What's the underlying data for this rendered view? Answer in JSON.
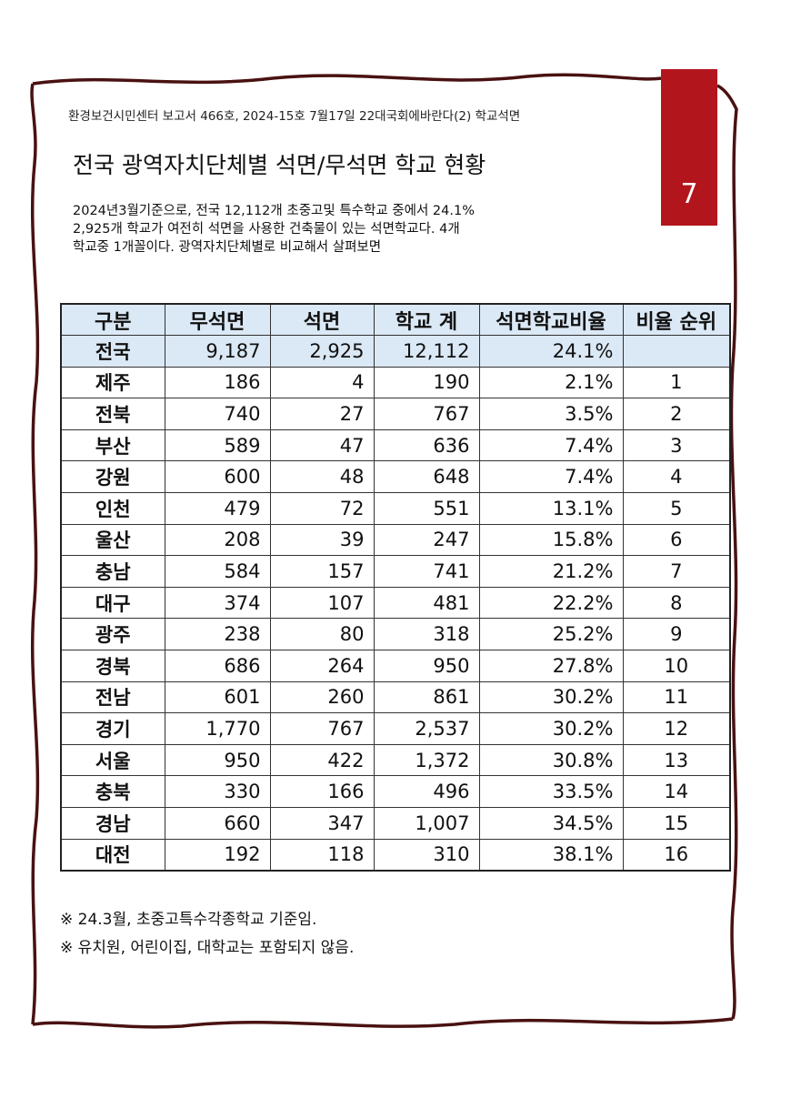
{
  "page": {
    "header_line": "환경보건시민센터 보고서 466호, 2024-15호 7월17일 22대국회에바란다(2) 학교석면",
    "title": "전국 광역자치단체별 석면/무석면 학교 현황",
    "page_number": "7",
    "accent_color": "#b3151c",
    "frame_color": "#4a1111"
  },
  "intro": {
    "lines": [
      "2024년3월기준으로, 전국 12,112개 초중고및 특수학교 중에서 24.1%",
      "2,925개 학교가 여전히 석면을 사용한 건축물이 있는 석면학교다. 4개",
      "학교중 1개꼴이다. 광역자치단체별로 비교해서 살펴보면"
    ]
  },
  "table": {
    "header_color": "#dbe8f5",
    "columns": [
      "구분",
      "무석면",
      "석면",
      "학교 계",
      "석면학교비율",
      "비율 순위"
    ],
    "rows": [
      [
        "전국",
        "9,187",
        "2,925",
        "12,112",
        "24.1%",
        ""
      ],
      [
        "제주",
        "186",
        "4",
        "190",
        "2.1%",
        "1"
      ],
      [
        "전북",
        "740",
        "27",
        "767",
        "3.5%",
        "2"
      ],
      [
        "부산",
        "589",
        "47",
        "636",
        "7.4%",
        "3"
      ],
      [
        "강원",
        "600",
        "48",
        "648",
        "7.4%",
        "4"
      ],
      [
        "인천",
        "479",
        "72",
        "551",
        "13.1%",
        "5"
      ],
      [
        "울산",
        "208",
        "39",
        "247",
        "15.8%",
        "6"
      ],
      [
        "충남",
        "584",
        "157",
        "741",
        "21.2%",
        "7"
      ],
      [
        "대구",
        "374",
        "107",
        "481",
        "22.2%",
        "8"
      ],
      [
        "광주",
        "238",
        "80",
        "318",
        "25.2%",
        "9"
      ],
      [
        "경북",
        "686",
        "264",
        "950",
        "27.8%",
        "10"
      ],
      [
        "전남",
        "601",
        "260",
        "861",
        "30.2%",
        "11"
      ],
      [
        "경기",
        "1,770",
        "767",
        "2,537",
        "30.2%",
        "12"
      ],
      [
        "서울",
        "950",
        "422",
        "1,372",
        "30.8%",
        "13"
      ],
      [
        "충북",
        "330",
        "166",
        "496",
        "33.5%",
        "14"
      ],
      [
        "경남",
        "660",
        "347",
        "1,007",
        "34.5%",
        "15"
      ],
      [
        "대전",
        "192",
        "118",
        "310",
        "38.1%",
        "16"
      ]
    ]
  },
  "notes": [
    "※ 24.3월, 초중고특수각종학교 기준임.",
    "※ 유치원, 어린이집, 대학교는 포함되지 않음."
  ]
}
